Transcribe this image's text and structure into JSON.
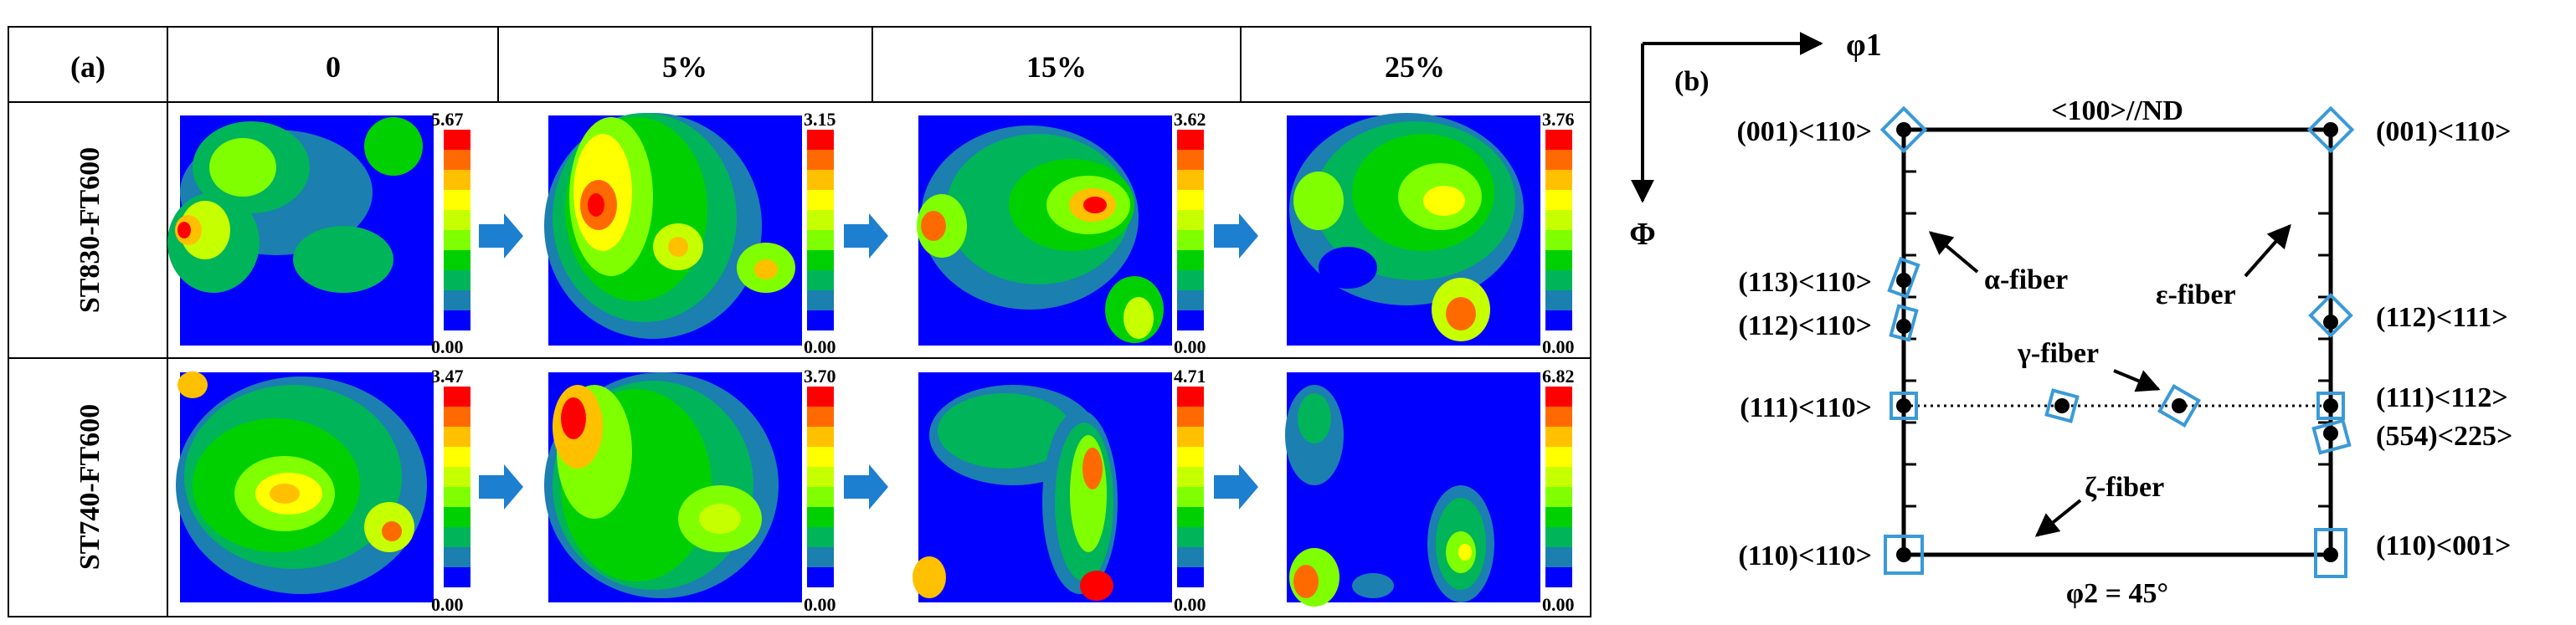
{
  "panel_a": {
    "label": "(a)",
    "columns": [
      "0",
      "5%",
      "15%",
      "25%"
    ],
    "rows": [
      {
        "label": "ST830-FT600",
        "maps": [
          {
            "max": "5.67",
            "min": "0.00"
          },
          {
            "max": "3.15",
            "min": "0.00"
          },
          {
            "max": "3.62",
            "min": "0.00"
          },
          {
            "max": "3.76",
            "min": "0.00"
          }
        ]
      },
      {
        "label": "ST740-FT600",
        "maps": [
          {
            "max": "3.47",
            "min": "0.00"
          },
          {
            "max": "3.70",
            "min": "0.00"
          },
          {
            "max": "4.71",
            "min": "0.00"
          },
          {
            "max": "6.82",
            "min": "0.00"
          }
        ]
      }
    ],
    "colorbar_colors": [
      "#ff0000",
      "#ff6a00",
      "#ffc000",
      "#ffff00",
      "#c6ff00",
      "#7fff00",
      "#00d000",
      "#00b45a",
      "#1b7fb0",
      "#0000ff"
    ],
    "arrow_color": "#1c7fd0"
  },
  "panel_b": {
    "label": "(b)",
    "axis_phi1": "φ1",
    "axis_Phi": "Φ",
    "top_label": "<100>//ND",
    "bottom_label": "φ2 = 45°",
    "left_labels": [
      "(001)<110>",
      "(113)<110>",
      "(112)<110>",
      "(111)<110>",
      "(110)<110>"
    ],
    "right_labels": [
      "(001)<110>",
      "(112)<111>",
      "(111)<112>",
      "(554)<225>",
      "(110)<001>"
    ],
    "fibers": [
      "α-fiber",
      "ε-fiber",
      "γ-fiber",
      "ζ-fiber"
    ],
    "symbol_color": "#3a9ad8"
  }
}
